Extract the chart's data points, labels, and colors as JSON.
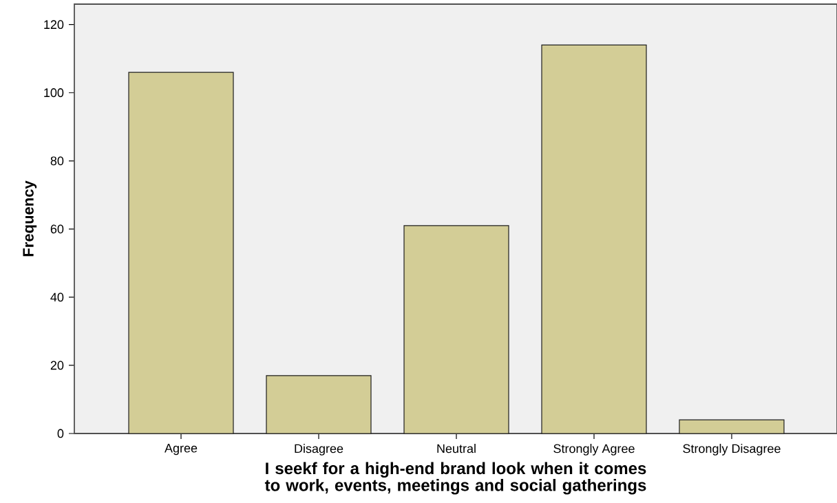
{
  "chart_data": {
    "type": "bar",
    "xlabel": "I seekf for a high-end brand look when it comes to work, events, meetings and social gatherings",
    "ylabel": "Frequency",
    "categories": [
      "Agree",
      "Disagree",
      "Neutral",
      "Strongly Agree",
      "Strongly Disagree"
    ],
    "values": [
      106,
      17,
      61,
      114,
      4
    ],
    "color": "#d3cd96",
    "ylim": [
      0,
      126
    ],
    "yticks": [
      0,
      20,
      40,
      60,
      80,
      100,
      120
    ]
  }
}
